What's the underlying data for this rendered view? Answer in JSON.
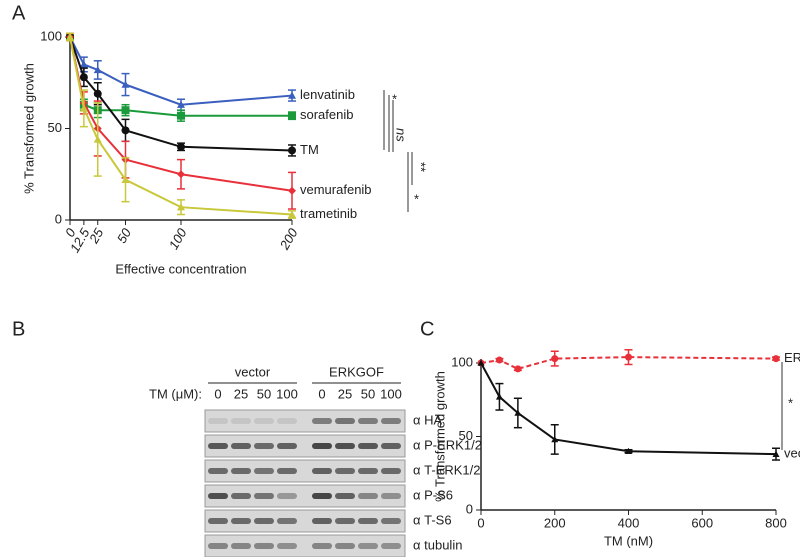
{
  "panels": [
    "A",
    "B",
    "C"
  ],
  "chart_data": [
    {
      "type": "line",
      "xlabel": "Effective concentration",
      "ylabel": "% Transformed growth",
      "x": [
        0,
        12.5,
        25,
        50,
        100,
        200
      ],
      "xlim": [
        0,
        200
      ],
      "ylim": [
        0,
        100
      ],
      "xticks": [
        0,
        12.5,
        25,
        50,
        100,
        200
      ],
      "yticks": [
        0,
        50,
        100
      ],
      "series": [
        {
          "name": "lenvatinib",
          "color": "#3a5fbe",
          "marker": "triangle",
          "values": [
            100,
            85,
            82,
            74,
            63,
            68
          ],
          "errors": [
            2,
            4,
            5,
            6,
            3,
            3
          ]
        },
        {
          "name": "sorafenib",
          "color": "#1a9a3a",
          "marker": "square",
          "values": [
            100,
            63,
            60,
            60,
            57,
            57
          ],
          "errors": [
            2,
            3,
            4,
            3,
            3,
            2
          ]
        },
        {
          "name": "TM",
          "color": "#111111",
          "marker": "circle",
          "values": [
            100,
            78,
            69,
            49,
            40,
            38
          ],
          "errors": [
            2,
            5,
            6,
            6,
            2,
            3
          ]
        },
        {
          "name": "vemurafenib",
          "color": "#e8303a",
          "marker": "diamond",
          "values": [
            100,
            64,
            50,
            33,
            25,
            16
          ],
          "errors": [
            2,
            6,
            15,
            10,
            8,
            10
          ]
        },
        {
          "name": "trametinib",
          "color": "#c8c83a",
          "marker": "triangle",
          "values": [
            100,
            61,
            44,
            22,
            7,
            3
          ],
          "errors": [
            2,
            10,
            20,
            12,
            4,
            2
          ]
        }
      ],
      "annotations": [
        "*",
        "ns",
        "**",
        "*"
      ]
    },
    {
      "type": "line",
      "xlabel": "TM (nM)",
      "ylabel": "% Transformed growth",
      "x": [
        0,
        50,
        100,
        200,
        400,
        800
      ],
      "xlim": [
        0,
        800
      ],
      "ylim": [
        0,
        100
      ],
      "xticks": [
        0,
        200,
        400,
        600,
        800
      ],
      "yticks": [
        0,
        50,
        100
      ],
      "series": [
        {
          "name": "ERKGOF",
          "color": "#e8303a",
          "marker": "circle",
          "line_style": "dashed",
          "values": [
            100,
            102,
            96,
            103,
            104,
            103
          ],
          "errors": [
            0,
            1,
            1,
            5,
            5,
            1
          ]
        },
        {
          "name": "vector",
          "color": "#111111",
          "marker": "triangle",
          "line_style": "solid",
          "values": [
            100,
            77,
            66,
            48,
            40,
            38
          ],
          "errors": [
            0,
            9,
            10,
            10,
            1,
            4
          ]
        }
      ],
      "annotations": [
        "*"
      ]
    }
  ],
  "blot": {
    "groups": [
      "vector",
      "ERKGOF"
    ],
    "dose_label": "TM (μM):",
    "lanes": [
      "0",
      "25",
      "50",
      "100",
      "0",
      "25",
      "50",
      "100"
    ],
    "rows": [
      "α HA",
      "α P-ERK1/2",
      "α T-ERK1/2",
      "α P-S6",
      "α T-S6",
      "α tubulin"
    ]
  }
}
